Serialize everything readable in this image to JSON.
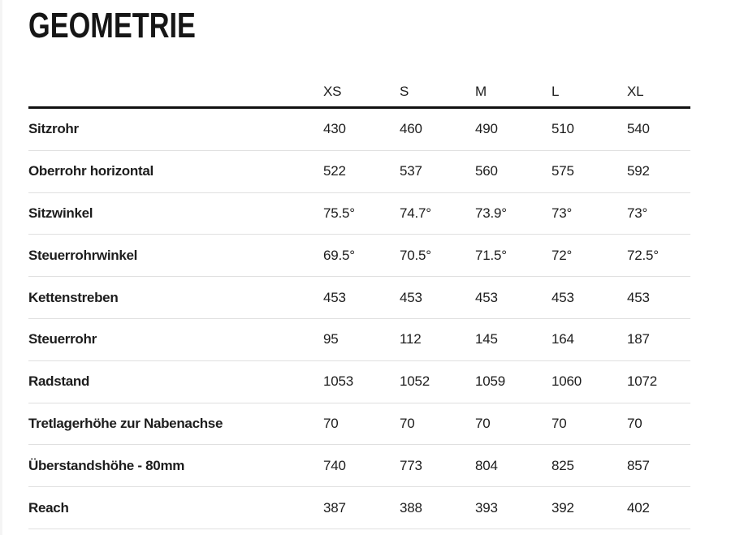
{
  "page": {
    "title": "GEOMETRIE"
  },
  "colors": {
    "background": "#ffffff",
    "text": "#1d1d1d",
    "title": "#161616",
    "header_rule": "#111111",
    "row_divider": "#e0e0e0"
  },
  "table": {
    "columns": [
      "XS",
      "S",
      "M",
      "L",
      "XL"
    ],
    "rows": [
      {
        "label": "Sitzrohr",
        "values": [
          "430",
          "460",
          "490",
          "510",
          "540"
        ]
      },
      {
        "label": "Oberrohr horizontal",
        "values": [
          "522",
          "537",
          "560",
          "575",
          "592"
        ]
      },
      {
        "label": "Sitzwinkel",
        "values": [
          "75.5°",
          "74.7°",
          "73.9°",
          "73°",
          "73°"
        ]
      },
      {
        "label": "Steuerrohrwinkel",
        "values": [
          "69.5°",
          "70.5°",
          "71.5°",
          "72°",
          "72.5°"
        ]
      },
      {
        "label": "Kettenstreben",
        "values": [
          "453",
          "453",
          "453",
          "453",
          "453"
        ]
      },
      {
        "label": "Steuerrohr",
        "values": [
          "95",
          "112",
          "145",
          "164",
          "187"
        ]
      },
      {
        "label": "Radstand",
        "values": [
          "1053",
          "1052",
          "1059",
          "1060",
          "1072"
        ]
      },
      {
        "label": "Tretlagerhöhe zur Nabenachse",
        "values": [
          "70",
          "70",
          "70",
          "70",
          "70"
        ]
      },
      {
        "label": "Überstandshöhe - 80mm",
        "values": [
          "740",
          "773",
          "804",
          "825",
          "857"
        ]
      },
      {
        "label": "Reach",
        "values": [
          "387",
          "388",
          "393",
          "392",
          "402"
        ]
      }
    ]
  }
}
